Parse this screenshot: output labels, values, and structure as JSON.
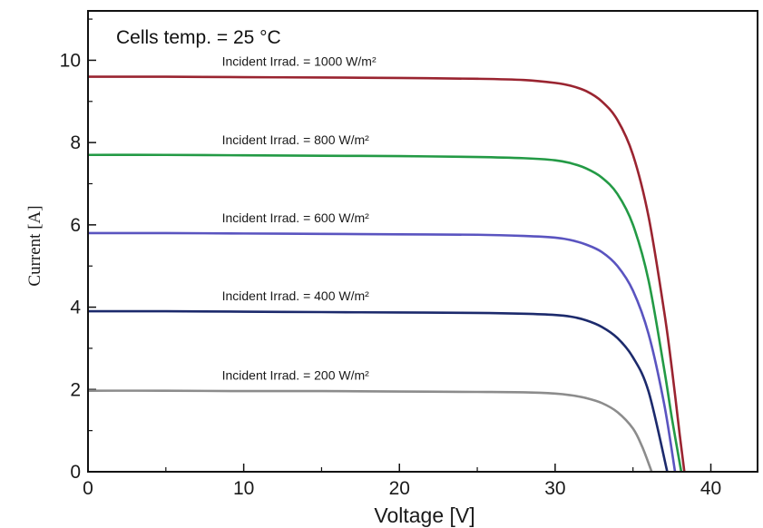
{
  "chart_data": {
    "type": "line",
    "title": "",
    "xlabel": "Voltage [V]",
    "ylabel": "Current [A]",
    "xlim": [
      0,
      43
    ],
    "ylim": [
      0,
      11.2
    ],
    "x_ticks": [
      "0",
      "10",
      "20",
      "30",
      "40"
    ],
    "y_ticks": [
      "0",
      "2",
      "4",
      "6",
      "8",
      "10"
    ],
    "grid": false,
    "annotation": "Cells temp. = 25 °C",
    "series": [
      {
        "label": "Incident Irrad. = 1000 W/m²",
        "color": "#9a2430",
        "x": [
          0,
          5,
          10,
          15,
          20,
          25,
          28,
          30,
          31,
          32,
          33,
          34,
          35,
          36,
          37,
          37.5,
          38,
          38.3
        ],
        "y": [
          9.6,
          9.6,
          9.59,
          9.58,
          9.57,
          9.55,
          9.52,
          9.45,
          9.38,
          9.25,
          9.0,
          8.55,
          7.7,
          6.2,
          3.9,
          2.5,
          0.9,
          0
        ]
      },
      {
        "label": "Incident Irrad. = 800 W/m²",
        "color": "#239a45",
        "x": [
          0,
          5,
          10,
          15,
          20,
          25,
          28,
          30,
          31,
          32,
          33,
          34,
          35,
          36,
          37,
          37.5,
          38.1
        ],
        "y": [
          7.7,
          7.7,
          7.69,
          7.68,
          7.67,
          7.65,
          7.62,
          7.57,
          7.5,
          7.37,
          7.15,
          6.75,
          6.0,
          4.65,
          2.5,
          1.3,
          0
        ]
      },
      {
        "label": "Incident Irrad. = 600 W/m²",
        "color": "#5a54c0",
        "x": [
          0,
          5,
          10,
          15,
          20,
          25,
          28,
          30,
          31,
          32,
          33,
          34,
          35,
          36,
          37,
          37.7
        ],
        "y": [
          5.8,
          5.8,
          5.79,
          5.78,
          5.77,
          5.76,
          5.73,
          5.69,
          5.63,
          5.52,
          5.34,
          5.0,
          4.4,
          3.35,
          1.65,
          0
        ]
      },
      {
        "label": "Incident Irrad. = 400 W/m²",
        "color": "#1c2a6c",
        "x": [
          0,
          5,
          10,
          15,
          20,
          25,
          28,
          30,
          31,
          32,
          33,
          34,
          35,
          36,
          37.2
        ],
        "y": [
          3.9,
          3.9,
          3.89,
          3.88,
          3.87,
          3.86,
          3.84,
          3.81,
          3.77,
          3.68,
          3.52,
          3.25,
          2.78,
          1.95,
          0
        ]
      },
      {
        "label": "Incident Irrad. = 200 W/m²",
        "color": "#8c8c8c",
        "x": [
          0,
          5,
          10,
          15,
          20,
          25,
          28,
          30,
          31,
          32,
          33,
          34,
          35,
          35.6,
          36.2
        ],
        "y": [
          1.97,
          1.97,
          1.96,
          1.96,
          1.95,
          1.94,
          1.93,
          1.9,
          1.86,
          1.79,
          1.67,
          1.45,
          1.05,
          0.6,
          0
        ]
      }
    ]
  }
}
